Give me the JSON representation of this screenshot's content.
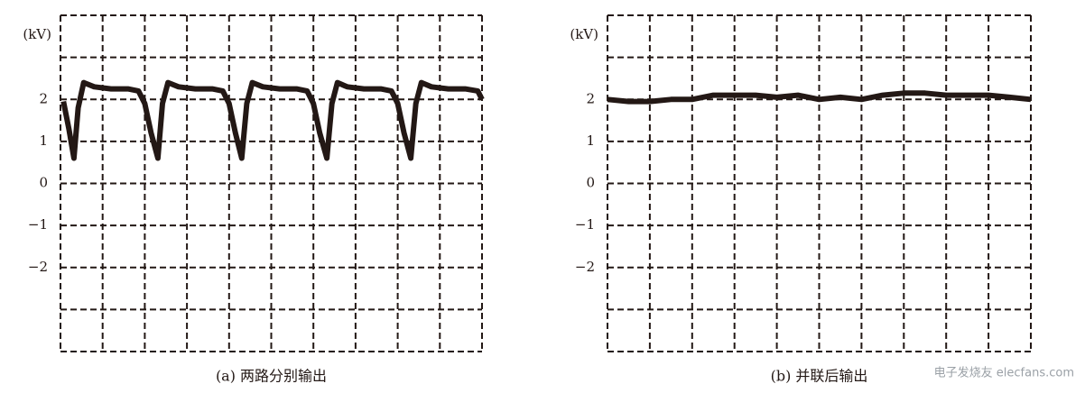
{
  "chart_data": [
    {
      "type": "line",
      "unit_label": "(kV)",
      "caption": "(a) 两路分别输出",
      "xlim": [
        0,
        10
      ],
      "ylim": [
        -4,
        4
      ],
      "yticks": [
        {
          "value": -2,
          "label": "−2"
        },
        {
          "value": -1,
          "label": "−1"
        },
        0,
        1,
        2
      ],
      "grid": true,
      "color": "#231815",
      "x": [
        0.07,
        0.2,
        0.32,
        0.42,
        0.55,
        0.8,
        1.2,
        1.6,
        1.85,
        2.0,
        2.15,
        2.31,
        2.42,
        2.55,
        2.8,
        3.2,
        3.6,
        3.85,
        4.0,
        4.15,
        4.3,
        4.42,
        4.55,
        4.8,
        5.2,
        5.6,
        5.85,
        6.0,
        6.15,
        6.32,
        6.44,
        6.57,
        6.8,
        7.2,
        7.6,
        7.85,
        8.0,
        8.15,
        8.31,
        8.43,
        8.56,
        8.8,
        9.2,
        9.6,
        9.9,
        10
      ],
      "values": [
        1.95,
        1.3,
        0.6,
        1.8,
        2.4,
        2.3,
        2.25,
        2.25,
        2.2,
        1.9,
        1.2,
        0.6,
        1.9,
        2.4,
        2.3,
        2.25,
        2.25,
        2.2,
        1.9,
        1.2,
        0.6,
        1.9,
        2.4,
        2.3,
        2.25,
        2.25,
        2.2,
        1.9,
        1.2,
        0.6,
        1.9,
        2.4,
        2.3,
        2.25,
        2.25,
        2.2,
        1.9,
        1.2,
        0.6,
        1.9,
        2.4,
        2.3,
        2.25,
        2.25,
        2.2,
        2.0
      ]
    },
    {
      "type": "line",
      "unit_label": "(kV)",
      "caption": "(b) 并联后输出",
      "xlim": [
        0,
        10
      ],
      "ylim": [
        -4,
        4
      ],
      "yticks": [
        {
          "value": -2,
          "label": "−2"
        },
        {
          "value": -1,
          "label": "−1"
        },
        0,
        1,
        2
      ],
      "grid": true,
      "color": "#231815",
      "x": [
        0,
        0.5,
        1,
        1.5,
        2,
        2.5,
        3,
        3.5,
        4,
        4.5,
        5,
        5.5,
        6,
        6.5,
        7,
        7.5,
        8,
        8.5,
        9,
        9.5,
        10
      ],
      "values": [
        2.0,
        1.95,
        1.95,
        2.0,
        2.0,
        2.1,
        2.1,
        2.1,
        2.05,
        2.1,
        2.0,
        2.05,
        2.0,
        2.1,
        2.15,
        2.15,
        2.1,
        2.1,
        2.1,
        2.05,
        2.0
      ]
    }
  ],
  "watermark": "电子发烧友 elecfans.com"
}
